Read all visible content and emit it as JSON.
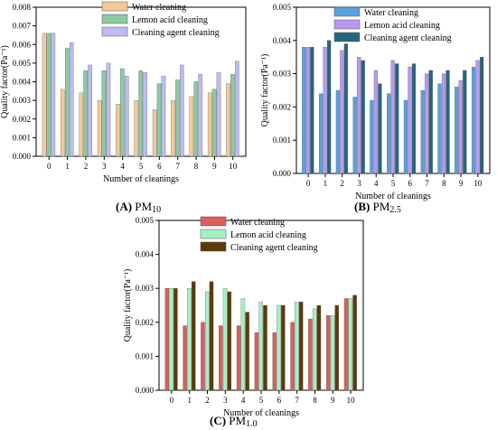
{
  "charts": [
    {
      "id": "A",
      "caption_letter": "(A)",
      "caption_base": "PM",
      "caption_sub": "10"
    },
    {
      "id": "B",
      "caption_letter": "(B)",
      "caption_base": "PM",
      "caption_sub": "2.5"
    },
    {
      "id": "C",
      "caption_letter": "(C)",
      "caption_base": "PM",
      "caption_sub": "1.0"
    }
  ],
  "chart_data": [
    {
      "type": "bar",
      "xlabel": "Number of cleanings",
      "ylabel": "Quality factor(Pa⁻¹)",
      "ylim": [
        0,
        0.008
      ],
      "yticks": [
        "0.000",
        "0.001",
        "0.002",
        "0.003",
        "0.004",
        "0.005",
        "0.006",
        "0.007",
        "0.008"
      ],
      "categories": [
        "0",
        "1",
        "2",
        "3",
        "4",
        "5",
        "6",
        "7",
        "8",
        "9",
        "10"
      ],
      "legend_position": "top-right",
      "series": [
        {
          "name": "Water cleaning",
          "color": "#f5c89a",
          "values": [
            0.0066,
            0.0036,
            0.0034,
            0.003,
            0.0028,
            0.003,
            0.0025,
            0.003,
            0.0032,
            0.0034,
            0.0039
          ]
        },
        {
          "name": "Lemon acid cleaning",
          "color": "#8cc9a1",
          "values": [
            0.0066,
            0.0058,
            0.0046,
            0.0046,
            0.0047,
            0.0046,
            0.0039,
            0.0041,
            0.004,
            0.0036,
            0.0044
          ]
        },
        {
          "name": "Cleaning agent cleaning",
          "color": "#bcbcf0",
          "values": [
            0.0066,
            0.0061,
            0.0049,
            0.005,
            0.0043,
            0.0045,
            0.0043,
            0.0049,
            0.0044,
            0.0045,
            0.0051
          ]
        }
      ]
    },
    {
      "type": "bar",
      "xlabel": "Number of cleanings",
      "ylabel": "Quality factor(Pa⁻¹)",
      "ylim": [
        0,
        0.005
      ],
      "yticks": [
        "0.000",
        "0.001",
        "0.002",
        "0.003",
        "0.004",
        "0.005"
      ],
      "categories": [
        "0",
        "1",
        "2",
        "3",
        "4",
        "5",
        "6",
        "7",
        "8",
        "9",
        "10"
      ],
      "legend_position": "top-right",
      "series": [
        {
          "name": "Water cleaning",
          "color": "#5aa0dc",
          "values": [
            0.0038,
            0.0024,
            0.0025,
            0.0023,
            0.0022,
            0.0024,
            0.0022,
            0.0025,
            0.0027,
            0.0026,
            0.0032
          ]
        },
        {
          "name": "Lemon acid cleaning",
          "color": "#b79af0",
          "values": [
            0.0038,
            0.0038,
            0.0037,
            0.0035,
            0.0031,
            0.0034,
            0.0032,
            0.003,
            0.003,
            0.0028,
            0.0034
          ]
        },
        {
          "name": "Cleaning agent cleaning",
          "color": "#27667a",
          "values": [
            0.0038,
            0.004,
            0.0039,
            0.0034,
            0.0027,
            0.0033,
            0.0033,
            0.0031,
            0.0031,
            0.0031,
            0.0035
          ]
        }
      ]
    },
    {
      "type": "bar",
      "xlabel": "Number of cleanings",
      "ylabel": "Quality factor(Pa⁻¹)",
      "ylim": [
        0,
        0.005
      ],
      "yticks": [
        "0.000",
        "0.001",
        "0.002",
        "0.003",
        "0.004",
        "0.005"
      ],
      "categories": [
        "0",
        "1",
        "2",
        "3",
        "4",
        "5",
        "6",
        "7",
        "8",
        "9",
        "10"
      ],
      "legend_position": "top-right",
      "series": [
        {
          "name": "Water cleaning",
          "color": "#d9605c",
          "values": [
            0.003,
            0.0019,
            0.002,
            0.0019,
            0.0019,
            0.0017,
            0.0017,
            0.002,
            0.0021,
            0.0022,
            0.0027
          ]
        },
        {
          "name": "Lemon acid cleaning",
          "color": "#a7efc6",
          "values": [
            0.003,
            0.003,
            0.0029,
            0.003,
            0.0027,
            0.0026,
            0.0025,
            0.0026,
            0.0024,
            0.0022,
            0.0027
          ]
        },
        {
          "name": "Cleaning agent cleaning",
          "color": "#5c3a08",
          "values": [
            0.003,
            0.0032,
            0.0032,
            0.0029,
            0.0023,
            0.0025,
            0.0025,
            0.0026,
            0.0025,
            0.0025,
            0.0028
          ]
        }
      ]
    }
  ]
}
